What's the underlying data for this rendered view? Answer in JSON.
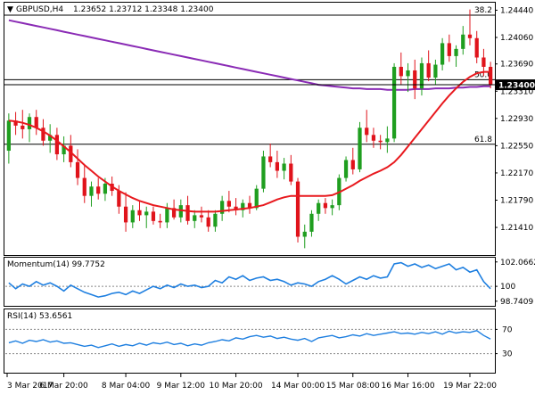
{
  "header": {
    "symbol": "GBPUSD,H4",
    "ohlc": "1.23652 1.23712 1.23348 1.23400",
    "arrow": "▼"
  },
  "colors": {
    "bull": "#1f9e1f",
    "bear": "#e0131b",
    "ma_fast": "#e8191e",
    "ma_slow": "#8a2bb5",
    "momentum": "#1e7fe0",
    "rsi": "#1e7fe0",
    "level": "#000000",
    "price_tag_bg": "#000000",
    "price_tag_text": "#ffffff"
  },
  "chart_data": [
    {
      "type": "candlestick",
      "title": "GBPUSD,H4",
      "y_ticks": [
        "1.24440",
        "1.24060",
        "1.23690",
        "1.23310",
        "1.22930",
        "1.22550",
        "1.22170",
        "1.21790",
        "1.21410"
      ],
      "ylim": [
        1.2105,
        1.2452
      ],
      "current_price": "1.23400",
      "levels": [
        {
          "label": "38.2",
          "value": 1.2437
        },
        {
          "label": "50.0",
          "value": 1.2347
        },
        {
          "label": "61.8",
          "value": 1.2257
        }
      ],
      "x_tick_labels": [
        "3 Mar 2017",
        "6 Mar 20:00",
        "8 Mar 04:00",
        "9 Mar 12:00",
        "10 Mar 20:00",
        "14 Mar 00:00",
        "15 Mar 08:00",
        "16 Mar 16:00",
        "19 Mar 22:00"
      ],
      "candles": [
        [
          1.2248,
          1.23,
          1.223,
          1.229
        ],
        [
          1.229,
          1.2302,
          1.227,
          1.2283
        ],
        [
          1.2283,
          1.2305,
          1.2265,
          1.2278
        ],
        [
          1.2278,
          1.23,
          1.226,
          1.2295
        ],
        [
          1.2295,
          1.2305,
          1.227,
          1.228
        ],
        [
          1.228,
          1.2292,
          1.2255,
          1.2262
        ],
        [
          1.2262,
          1.2285,
          1.2245,
          1.227
        ],
        [
          1.227,
          1.228,
          1.2235,
          1.2243
        ],
        [
          1.2243,
          1.2268,
          1.2232,
          1.2255
        ],
        [
          1.2255,
          1.227,
          1.2225,
          1.2232
        ],
        [
          1.2232,
          1.225,
          1.22,
          1.221
        ],
        [
          1.221,
          1.2228,
          1.2175,
          1.2185
        ],
        [
          1.2185,
          1.2205,
          1.217,
          1.2198
        ],
        [
          1.2198,
          1.221,
          1.218,
          1.2188
        ],
        [
          1.2188,
          1.221,
          1.2178,
          1.2202
        ],
        [
          1.2202,
          1.2212,
          1.2185,
          1.2192
        ],
        [
          1.2192,
          1.22,
          1.216,
          1.217
        ],
        [
          1.217,
          1.219,
          1.2135,
          1.2148
        ],
        [
          1.2148,
          1.2172,
          1.214,
          1.2165
        ],
        [
          1.2165,
          1.2178,
          1.215,
          1.2158
        ],
        [
          1.2158,
          1.217,
          1.214,
          1.2163
        ],
        [
          1.2163,
          1.217,
          1.2145,
          1.215
        ],
        [
          1.215,
          1.216,
          1.214,
          1.2148
        ],
        [
          1.2148,
          1.2175,
          1.214,
          1.2168
        ],
        [
          1.2168,
          1.218,
          1.2152,
          1.2155
        ],
        [
          1.2155,
          1.218,
          1.2148,
          1.2172
        ],
        [
          1.2172,
          1.2185,
          1.2145,
          1.215
        ],
        [
          1.215,
          1.2165,
          1.214,
          1.2158
        ],
        [
          1.2158,
          1.217,
          1.2148,
          1.2155
        ],
        [
          1.2155,
          1.2165,
          1.2135,
          1.2142
        ],
        [
          1.2142,
          1.2165,
          1.2135,
          1.216
        ],
        [
          1.216,
          1.2185,
          1.215,
          1.2178
        ],
        [
          1.2178,
          1.2192,
          1.2162,
          1.217
        ],
        [
          1.217,
          1.2182,
          1.2158,
          1.2165
        ],
        [
          1.2165,
          1.218,
          1.2155,
          1.2175
        ],
        [
          1.2175,
          1.2185,
          1.216,
          1.2168
        ],
        [
          1.2168,
          1.22,
          1.2165,
          1.2195
        ],
        [
          1.2195,
          1.2248,
          1.219,
          1.224
        ],
        [
          1.224,
          1.2258,
          1.2225,
          1.2232
        ],
        [
          1.2232,
          1.2248,
          1.221,
          1.222
        ],
        [
          1.222,
          1.2238,
          1.2208,
          1.223
        ],
        [
          1.223,
          1.2242,
          1.22,
          1.2205
        ],
        [
          1.2205,
          1.221,
          1.212,
          1.2128
        ],
        [
          1.2128,
          1.2145,
          1.2112,
          1.2135
        ],
        [
          1.2135,
          1.2165,
          1.2128,
          1.216
        ],
        [
          1.216,
          1.218,
          1.215,
          1.2175
        ],
        [
          1.2175,
          1.2182,
          1.216,
          1.2168
        ],
        [
          1.2168,
          1.218,
          1.2158,
          1.2172
        ],
        [
          1.2172,
          1.2215,
          1.2165,
          1.221
        ],
        [
          1.221,
          1.224,
          1.2205,
          1.2235
        ],
        [
          1.2235,
          1.2252,
          1.2215,
          1.2222
        ],
        [
          1.2222,
          1.2288,
          1.2218,
          1.228
        ],
        [
          1.228,
          1.2305,
          1.226,
          1.227
        ],
        [
          1.227,
          1.228,
          1.2252,
          1.2262
        ],
        [
          1.2262,
          1.227,
          1.225,
          1.226
        ],
        [
          1.226,
          1.2282,
          1.2245,
          1.2265
        ],
        [
          1.2265,
          1.237,
          1.226,
          1.2365
        ],
        [
          1.2365,
          1.2385,
          1.234,
          1.2352
        ],
        [
          1.2352,
          1.237,
          1.233,
          1.236
        ],
        [
          1.236,
          1.2375,
          1.232,
          1.2335
        ],
        [
          1.2335,
          1.2378,
          1.2325,
          1.237
        ],
        [
          1.237,
          1.2388,
          1.2345,
          1.235
        ],
        [
          1.235,
          1.2375,
          1.234,
          1.2368
        ],
        [
          1.2368,
          1.2405,
          1.236,
          1.2398
        ],
        [
          1.2398,
          1.241,
          1.2372,
          1.238
        ],
        [
          1.238,
          1.2395,
          1.2365,
          1.239
        ],
        [
          1.239,
          1.2422,
          1.2382,
          1.241
        ],
        [
          1.241,
          1.2445,
          1.2395,
          1.2405
        ],
        [
          1.2405,
          1.2415,
          1.237,
          1.2378
        ],
        [
          1.2378,
          1.239,
          1.2352,
          1.2365
        ],
        [
          1.2365,
          1.2372,
          1.2335,
          1.234
        ]
      ],
      "ma_fast": [
        1.229,
        1.2289,
        1.2287,
        1.2284,
        1.228,
        1.2275,
        1.2269,
        1.2262,
        1.2254,
        1.2246,
        1.2237,
        1.2228,
        1.222,
        1.2212,
        1.2205,
        1.2198,
        1.2192,
        1.2187,
        1.2182,
        1.2178,
        1.2175,
        1.2172,
        1.217,
        1.2168,
        1.2166,
        1.2165,
        1.2164,
        1.2163,
        1.2163,
        1.2163,
        1.2163,
        1.2164,
        1.2165,
        1.2166,
        1.2167,
        1.2168,
        1.217,
        1.2172,
        1.2176,
        1.218,
        1.2183,
        1.2185,
        1.2185,
        1.2185,
        1.2185,
        1.2185,
        1.2185,
        1.2186,
        1.219,
        1.2195,
        1.22,
        1.2206,
        1.2211,
        1.2216,
        1.222,
        1.2225,
        1.2232,
        1.2242,
        1.2254,
        1.2266,
        1.2278,
        1.229,
        1.2302,
        1.2314,
        1.2325,
        1.2335,
        1.2344,
        1.2351,
        1.2356,
        1.2358,
        1.2358
      ],
      "ma_slow": [
        1.243,
        1.2428,
        1.2426,
        1.2424,
        1.2422,
        1.242,
        1.2418,
        1.2416,
        1.2414,
        1.2412,
        1.241,
        1.2408,
        1.2406,
        1.2404,
        1.2402,
        1.24,
        1.2398,
        1.2396,
        1.2394,
        1.2392,
        1.239,
        1.2388,
        1.2386,
        1.2384,
        1.2382,
        1.238,
        1.2378,
        1.2376,
        1.2374,
        1.2372,
        1.237,
        1.2368,
        1.2366,
        1.2364,
        1.2362,
        1.236,
        1.2358,
        1.2356,
        1.2354,
        1.2352,
        1.235,
        1.2348,
        1.2346,
        1.2344,
        1.2342,
        1.234,
        1.2339,
        1.2338,
        1.2337,
        1.2336,
        1.2335,
        1.2335,
        1.2334,
        1.2334,
        1.2334,
        1.2333,
        1.2333,
        1.2333,
        1.2333,
        1.2334,
        1.2334,
        1.2334,
        1.2335,
        1.2335,
        1.2335,
        1.2336,
        1.2336,
        1.2337,
        1.2337,
        1.2338,
        1.2338
      ]
    },
    {
      "type": "line",
      "title": "Momentum(14) 99.7752",
      "y_ticks": [
        "102.0662",
        "100",
        "98.7409"
      ],
      "ylim": [
        98.5,
        102.2
      ],
      "reference": 100,
      "values": [
        100.3,
        99.8,
        100.2,
        100.0,
        100.4,
        100.1,
        100.3,
        100.0,
        99.6,
        100.1,
        99.8,
        99.5,
        99.3,
        99.1,
        99.2,
        99.4,
        99.5,
        99.3,
        99.6,
        99.4,
        99.7,
        100.0,
        99.8,
        100.1,
        99.9,
        100.2,
        100.0,
        100.1,
        99.9,
        100.0,
        100.5,
        100.3,
        100.8,
        100.6,
        100.9,
        100.5,
        100.7,
        100.8,
        100.5,
        100.6,
        100.4,
        100.1,
        100.3,
        100.2,
        100.0,
        100.4,
        100.6,
        100.9,
        100.6,
        100.2,
        100.5,
        100.8,
        100.6,
        100.9,
        100.7,
        100.8,
        101.9,
        102.0,
        101.7,
        101.9,
        101.6,
        101.8,
        101.5,
        101.7,
        101.9,
        101.4,
        101.6,
        101.2,
        101.4,
        100.4,
        99.8
      ]
    },
    {
      "type": "line",
      "title": "RSI(14) 53.6561",
      "y_ticks": [
        "70",
        "30"
      ],
      "ylim": [
        0,
        100
      ],
      "levels": [
        70,
        30
      ],
      "values": [
        48,
        51,
        47,
        52,
        50,
        53,
        49,
        51,
        47,
        48,
        45,
        42,
        44,
        40,
        43,
        46,
        42,
        45,
        43,
        47,
        44,
        48,
        46,
        49,
        45,
        47,
        43,
        46,
        44,
        48,
        50,
        53,
        51,
        56,
        54,
        58,
        60,
        57,
        59,
        55,
        57,
        54,
        52,
        55,
        50,
        56,
        58,
        60,
        56,
        58,
        61,
        59,
        63,
        60,
        62,
        64,
        66,
        63,
        64,
        62,
        65,
        63,
        66,
        62,
        67,
        64,
        66,
        65,
        68,
        60,
        54
      ]
    }
  ]
}
